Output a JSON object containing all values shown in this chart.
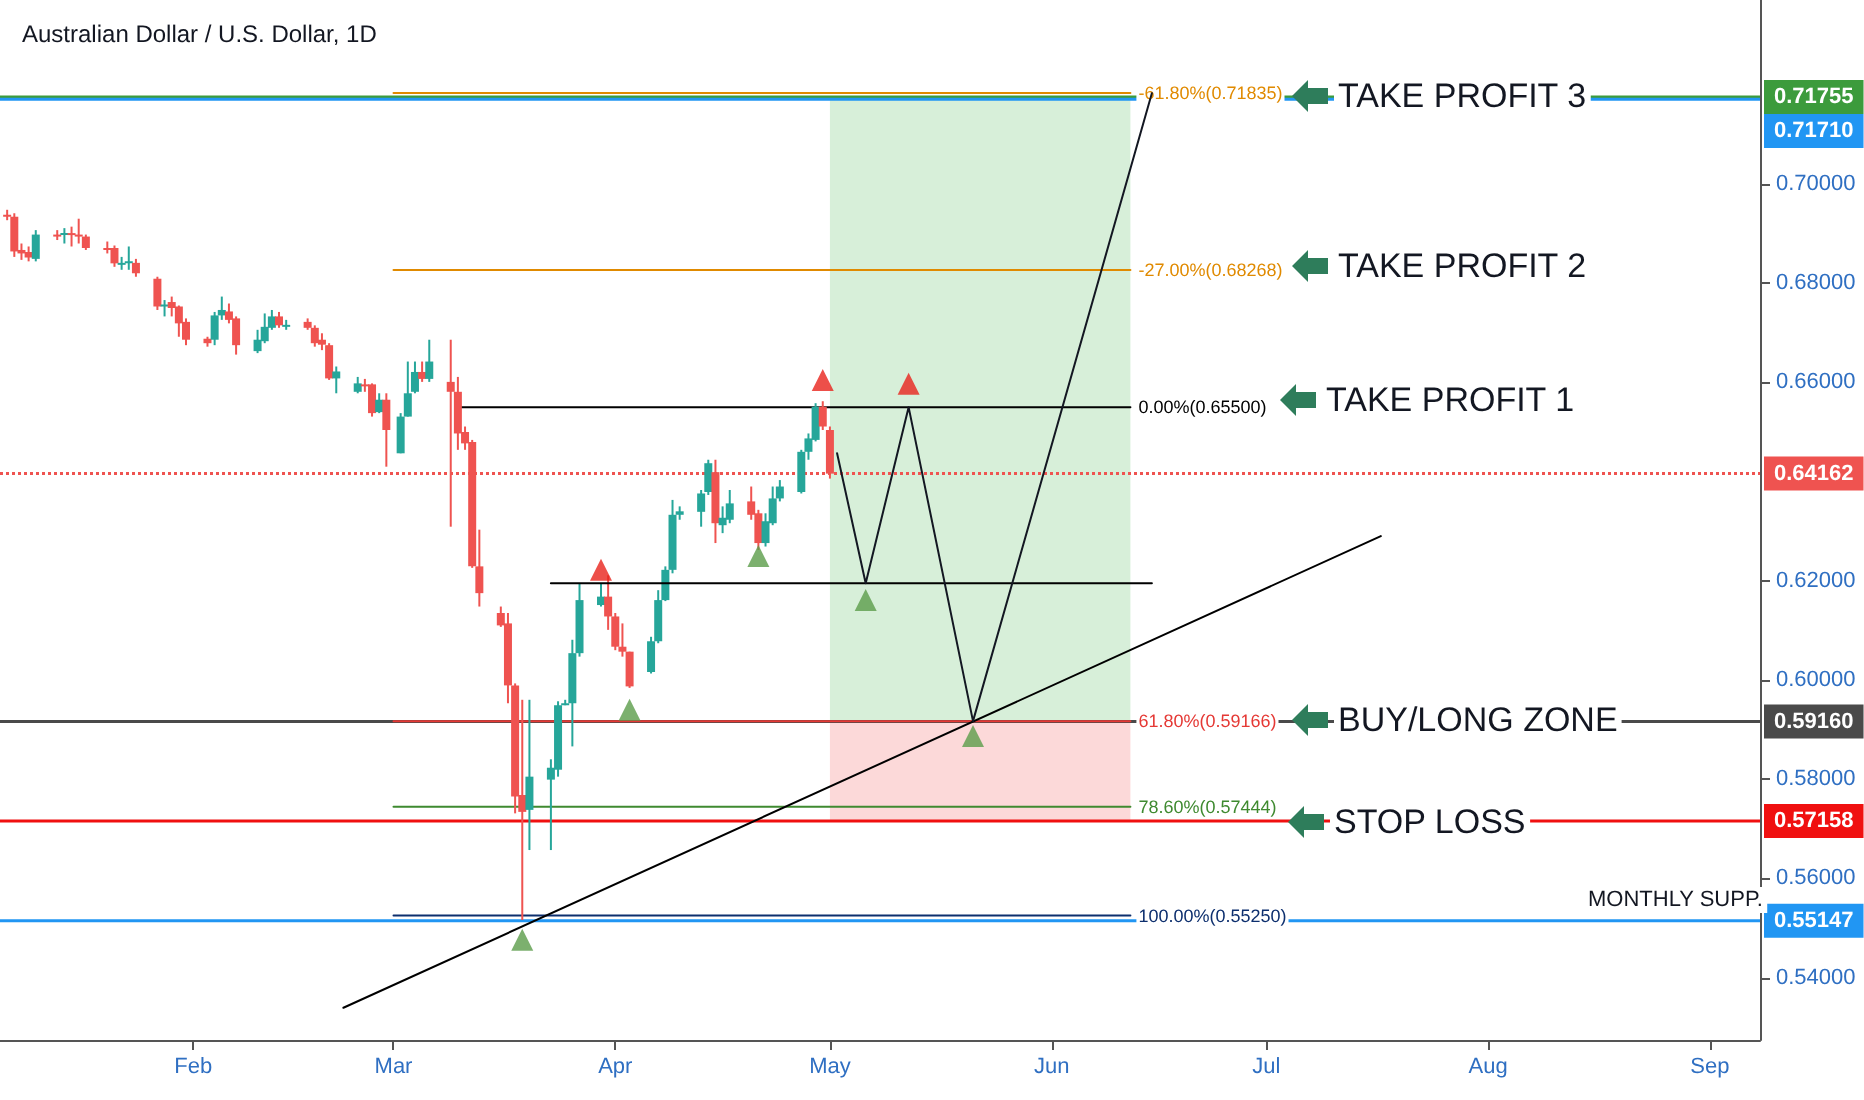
{
  "chart_data": {
    "type": "candlestick",
    "title": "Australian Dollar / U.S. Dollar, 1D",
    "xlim": [
      "--01-05",
      "--09-08"
    ],
    "ylim": [
      0.5274,
      0.7371
    ],
    "xticks": [
      {
        "value": "--02-01",
        "label": "Feb"
      },
      {
        "value": "--03-01",
        "label": "Mar"
      },
      {
        "value": "--04-01",
        "label": "Apr"
      },
      {
        "value": "--05-01",
        "label": "May"
      },
      {
        "value": "--06-01",
        "label": "Jun"
      },
      {
        "value": "--07-01",
        "label": "Jul"
      },
      {
        "value": "--08-01",
        "label": "Aug"
      },
      {
        "value": "--09-01",
        "label": "Sep"
      }
    ],
    "yticks": [
      {
        "value": 0.54,
        "label": "0.54000"
      },
      {
        "value": 0.56,
        "label": "0.56000"
      },
      {
        "value": 0.58,
        "label": "0.58000"
      },
      {
        "value": 0.6,
        "label": "0.60000"
      },
      {
        "value": 0.62,
        "label": "0.62000"
      },
      {
        "value": 0.66,
        "label": "0.66000"
      },
      {
        "value": 0.68,
        "label": "0.68000"
      },
      {
        "value": 0.7,
        "label": "0.70000"
      }
    ],
    "grid": false,
    "legend": false,
    "marker": "none",
    "series": [
      {
        "type": "candlestick",
        "x": [
          "--01-06",
          "--01-07",
          "--01-08",
          "--01-09",
          "--01-10",
          "--01-13",
          "--01-14",
          "--01-15",
          "--01-16",
          "--01-17",
          "--01-20",
          "--01-21",
          "--01-22",
          "--01-23",
          "--01-24",
          "--01-27",
          "--01-28",
          "--01-29",
          "--01-30",
          "--01-31",
          "--02-03",
          "--02-04",
          "--02-05",
          "--02-06",
          "--02-07",
          "--02-10",
          "--02-11",
          "--02-12",
          "--02-13",
          "--02-14",
          "--02-17",
          "--02-18",
          "--02-19",
          "--02-20",
          "--02-21",
          "--02-24",
          "--02-25",
          "--02-26",
          "--02-27",
          "--02-28",
          "--03-02",
          "--03-03",
          "--03-04",
          "--03-05",
          "--03-06",
          "--03-09",
          "--03-10",
          "--03-11",
          "--03-12",
          "--03-13",
          "--03-16",
          "--03-17",
          "--03-18",
          "--03-19",
          "--03-20",
          "--03-23",
          "--03-24",
          "--03-25",
          "--03-26",
          "--03-27",
          "--03-30",
          "--03-31",
          "--04-01",
          "--04-02",
          "--04-03",
          "--04-06",
          "--04-07",
          "--04-08",
          "--04-09",
          "--04-10",
          "--04-13",
          "--04-14",
          "--04-15",
          "--04-16",
          "--04-17",
          "--04-20",
          "--04-21",
          "--04-22",
          "--04-23",
          "--04-24",
          "--04-27",
          "--04-28",
          "--04-29",
          "--04-30",
          "--05-01"
        ],
        "ohlc": [
          [
            0.6938,
            0.6948,
            0.6927,
            0.6934
          ],
          [
            0.6934,
            0.6941,
            0.6853,
            0.6864
          ],
          [
            0.6867,
            0.688,
            0.6847,
            0.686
          ],
          [
            0.6863,
            0.6874,
            0.6844,
            0.6852
          ],
          [
            0.6849,
            0.6907,
            0.6844,
            0.6898
          ],
          [
            0.6898,
            0.6907,
            0.6887,
            0.6897
          ],
          [
            0.6897,
            0.6911,
            0.688,
            0.6901
          ],
          [
            0.6901,
            0.6914,
            0.6874,
            0.6898
          ],
          [
            0.6898,
            0.693,
            0.688,
            0.6897
          ],
          [
            0.6894,
            0.6898,
            0.6867,
            0.6871
          ],
          [
            0.6871,
            0.6884,
            0.686,
            0.687
          ],
          [
            0.6871,
            0.6876,
            0.6833,
            0.684
          ],
          [
            0.684,
            0.6853,
            0.6827,
            0.6841
          ],
          [
            0.6841,
            0.6874,
            0.6827,
            0.6844
          ],
          [
            0.6841,
            0.6849,
            0.6813,
            0.682
          ],
          [
            0.6809,
            0.6813,
            0.6746,
            0.6753
          ],
          [
            0.6753,
            0.6766,
            0.6733,
            0.6757
          ],
          [
            0.6762,
            0.6773,
            0.6733,
            0.675
          ],
          [
            0.6753,
            0.6755,
            0.6692,
            0.6719
          ],
          [
            0.6722,
            0.6729,
            0.6675,
            0.6686
          ],
          [
            0.6688,
            0.6692,
            0.6672,
            0.6679
          ],
          [
            0.6686,
            0.6742,
            0.6675,
            0.6735
          ],
          [
            0.6735,
            0.6773,
            0.6726,
            0.6746
          ],
          [
            0.6743,
            0.6759,
            0.6719,
            0.6726
          ],
          [
            0.6729,
            0.6733,
            0.6656,
            0.6675
          ],
          [
            0.6663,
            0.6706,
            0.6659,
            0.6686
          ],
          [
            0.6683,
            0.6739,
            0.6679,
            0.6712
          ],
          [
            0.671,
            0.6746,
            0.6706,
            0.6733
          ],
          [
            0.6733,
            0.6742,
            0.671,
            0.6715
          ],
          [
            0.6715,
            0.6726,
            0.6706,
            0.6716
          ],
          [
            0.6722,
            0.6729,
            0.6706,
            0.671
          ],
          [
            0.671,
            0.6715,
            0.6672,
            0.6679
          ],
          [
            0.6686,
            0.6699,
            0.6665,
            0.6676
          ],
          [
            0.6675,
            0.6679,
            0.6605,
            0.6608
          ],
          [
            0.6608,
            0.6632,
            0.6578,
            0.6622
          ],
          [
            0.6581,
            0.6611,
            0.6578,
            0.6598
          ],
          [
            0.6596,
            0.6607,
            0.6581,
            0.6592
          ],
          [
            0.6596,
            0.6598,
            0.6531,
            0.6538
          ],
          [
            0.654,
            0.6578,
            0.6538,
            0.6565
          ],
          [
            0.6565,
            0.6578,
            0.643,
            0.6504
          ],
          [
            0.6457,
            0.6538,
            0.6457,
            0.6531
          ],
          [
            0.6531,
            0.6642,
            0.6531,
            0.6578
          ],
          [
            0.6581,
            0.6642,
            0.6578,
            0.6621
          ],
          [
            0.6621,
            0.6642,
            0.6601,
            0.6607
          ],
          [
            0.6607,
            0.6686,
            0.6601,
            0.6642
          ],
          [
            0.6601,
            0.6686,
            0.6309,
            0.6581
          ],
          [
            0.6581,
            0.6611,
            0.6464,
            0.6497
          ],
          [
            0.65,
            0.6511,
            0.6464,
            0.6477
          ],
          [
            0.648,
            0.6484,
            0.6226,
            0.6229
          ],
          [
            0.6229,
            0.6303,
            0.6148,
            0.6175
          ],
          [
            0.6135,
            0.6148,
            0.6107,
            0.611
          ],
          [
            0.6114,
            0.6135,
            0.5953,
            0.5989
          ],
          [
            0.5989,
            0.5993,
            0.5731,
            0.5765
          ],
          [
            0.5768,
            0.596,
            0.5516,
            0.5734
          ],
          [
            0.5738,
            0.596,
            0.5657,
            0.5805
          ],
          [
            0.5799,
            0.584,
            0.5657,
            0.5823
          ],
          [
            0.5819,
            0.5957,
            0.5805,
            0.5949
          ],
          [
            0.5949,
            0.596,
            0.5949,
            0.5953
          ],
          [
            0.5953,
            0.6081,
            0.5866,
            0.6054
          ],
          [
            0.6054,
            0.6195,
            0.6047,
            0.6161
          ],
          [
            0.6151,
            0.6195,
            0.6148,
            0.6168
          ],
          [
            0.6168,
            0.6211,
            0.6101,
            0.6128
          ],
          [
            0.6128,
            0.6135,
            0.606,
            0.6067
          ],
          [
            0.6067,
            0.6114,
            0.6047,
            0.6057
          ],
          [
            0.6057,
            0.6057,
            0.5984,
            0.5987
          ],
          [
            0.6016,
            0.6087,
            0.6013,
            0.6078
          ],
          [
            0.6078,
            0.6181,
            0.6074,
            0.6161
          ],
          [
            0.6161,
            0.6229,
            0.6159,
            0.6222
          ],
          [
            0.6222,
            0.6363,
            0.6215,
            0.6333
          ],
          [
            0.6333,
            0.635,
            0.6323,
            0.634
          ],
          [
            0.6339,
            0.6383,
            0.6309,
            0.6376
          ],
          [
            0.6379,
            0.6444,
            0.6373,
            0.6437
          ],
          [
            0.6419,
            0.6444,
            0.6276,
            0.6316
          ],
          [
            0.6312,
            0.635,
            0.6296,
            0.6327
          ],
          [
            0.6323,
            0.6383,
            0.6316,
            0.6356
          ],
          [
            0.636,
            0.639,
            0.6323,
            0.6333
          ],
          [
            0.6336,
            0.6343,
            0.6262,
            0.6276
          ],
          [
            0.6276,
            0.6336,
            0.6269,
            0.632
          ],
          [
            0.6316,
            0.639,
            0.6312,
            0.6366
          ],
          [
            0.6366,
            0.6403,
            0.636,
            0.639
          ],
          [
            0.6379,
            0.6464,
            0.6376,
            0.646
          ],
          [
            0.646,
            0.6497,
            0.6444,
            0.6487
          ],
          [
            0.6484,
            0.6558,
            0.6481,
            0.6551
          ],
          [
            0.6551,
            0.6562,
            0.6504,
            0.6511
          ],
          [
            0.6504,
            0.6511,
            0.6406,
            0.6416
          ]
        ],
        "colors": [
          "#ef5350",
          "#ef5350",
          "#ef5350",
          "#ef5350",
          "#26a69a",
          "#ef5350",
          "#26a69a",
          "#ef5350",
          "#ef5350",
          "#ef5350",
          "#ef5350",
          "#ef5350",
          "#26a69a",
          "#26a69a",
          "#ef5350",
          "#ef5350",
          "#26a69a",
          "#ef5350",
          "#ef5350",
          "#ef5350",
          "#ef5350",
          "#26a69a",
          "#26a69a",
          "#ef5350",
          "#ef5350",
          "#26a69a",
          "#26a69a",
          "#26a69a",
          "#ef5350",
          "#26a69a",
          "#ef5350",
          "#ef5350",
          "#ef5350",
          "#ef5350",
          "#26a69a",
          "#26a69a",
          "#ef5350",
          "#ef5350",
          "#26a69a",
          "#ef5350",
          "#26a69a",
          "#26a69a",
          "#26a69a",
          "#ef5350",
          "#26a69a",
          "#ef5350",
          "#ef5350",
          "#ef5350",
          "#ef5350",
          "#ef5350",
          "#ef5350",
          "#ef5350",
          "#ef5350",
          "#ef5350",
          "#26a69a",
          "#26a69a",
          "#26a69a",
          "#26a69a",
          "#26a69a",
          "#26a69a",
          "#26a69a",
          "#ef5350",
          "#ef5350",
          "#ef5350",
          "#ef5350",
          "#26a69a",
          "#26a69a",
          "#26a69a",
          "#26a69a",
          "#26a69a",
          "#26a69a",
          "#26a69a",
          "#ef5350",
          "#26a69a",
          "#26a69a",
          "#ef5350",
          "#ef5350",
          "#26a69a",
          "#26a69a",
          "#26a69a",
          "#26a69a",
          "#26a69a",
          "#26a69a",
          "#ef5350",
          "#ef5350"
        ]
      },
      {
        "type": "line",
        "name": "-61.80%(0.71835)",
        "color": "#e08a00",
        "x": [
          "--03-01",
          "--06-12"
        ],
        "values": [
          0.71835,
          0.71835
        ]
      },
      {
        "type": "line",
        "name": "-27.00%(0.68268)",
        "color": "#e08a00",
        "x": [
          "--03-01",
          "--06-12"
        ],
        "values": [
          0.68268,
          0.68268
        ]
      },
      {
        "type": "line",
        "name": "0.00%(0.65500)",
        "color": "#000000",
        "x": [
          "--03-10",
          "--06-12"
        ],
        "values": [
          0.655,
          0.655
        ]
      },
      {
        "type": "line",
        "name": "61.80%(0.59166)",
        "color": "#e53935",
        "x": [
          "--03-01",
          "--06-12"
        ],
        "values": [
          0.59166,
          0.59166
        ]
      },
      {
        "type": "line",
        "name": "78.60%(0.57444)",
        "color": "#3f8a30",
        "x": [
          "--03-01",
          "--06-12"
        ],
        "values": [
          0.57444,
          0.57444
        ]
      },
      {
        "type": "line",
        "name": "100.00%(0.55250)",
        "color": "#0d2f6e",
        "x": [
          "--03-01",
          "--06-12"
        ],
        "values": [
          0.5525,
          0.5525
        ]
      },
      {
        "type": "line",
        "color": "#000000",
        "x": [
          "--02-22",
          "--07-17"
        ],
        "values": [
          0.5339,
          0.629
        ]
      },
      {
        "type": "line",
        "color": "#000000",
        "x": [
          "--03-23",
          "--06-15"
        ],
        "values": [
          0.6195,
          0.6195
        ]
      },
      {
        "type": "line",
        "color": "#131722",
        "x": [
          "--05-02",
          "--05-06",
          "--05-12",
          "--05-21",
          "--06-15"
        ],
        "values": [
          0.6457,
          0.6195,
          0.655,
          0.5917,
          0.7183
        ]
      },
      {
        "type": "scatter",
        "marker": "triangle",
        "color": "#e8231b",
        "x": [
          "--03-30",
          "--04-30",
          "--05-12"
        ],
        "values": [
          0.6222,
          0.6605,
          0.6597
        ]
      },
      {
        "type": "scatter",
        "marker": "triangle",
        "color": "#5b9c4a",
        "x": [
          "--03-19",
          "--04-03",
          "--04-21",
          "--05-06",
          "--05-21"
        ],
        "values": [
          0.5476,
          0.594,
          0.625,
          0.6161,
          0.5887
        ]
      }
    ],
    "bands": [
      {
        "axis": "y",
        "from": 0.59166,
        "to": 0.7171,
        "color": "#cdebcf"
      },
      {
        "axis": "y",
        "from": 0.57158,
        "to": 0.59166,
        "color": "#fbd0d0"
      }
    ],
    "ref_lines": [
      {
        "axis": "y",
        "value": 0.71755,
        "label": "0.71755",
        "color": "#3c9b3c"
      },
      {
        "axis": "y",
        "value": 0.7171,
        "label": "0.71710",
        "color": "#2196f3"
      },
      {
        "axis": "y",
        "value": 0.64162,
        "label": "0.64162",
        "color": "#ef5350",
        "line_style": "dotted"
      },
      {
        "axis": "y",
        "value": 0.5916,
        "label": "0.59160",
        "color": "#4a4a4a"
      },
      {
        "axis": "y",
        "value": 0.57158,
        "label": "0.57158",
        "color": "#f01010"
      },
      {
        "axis": "y",
        "value": 0.55147,
        "label": "0.55147",
        "color": "#2196f3"
      }
    ],
    "annotations": [
      "TAKE PROFIT 3",
      "TAKE PROFIT 2",
      "TAKE PROFIT 1",
      "BUY/LONG ZONE",
      "STOP LOSS",
      "MONTHLY SUPP."
    ]
  }
}
